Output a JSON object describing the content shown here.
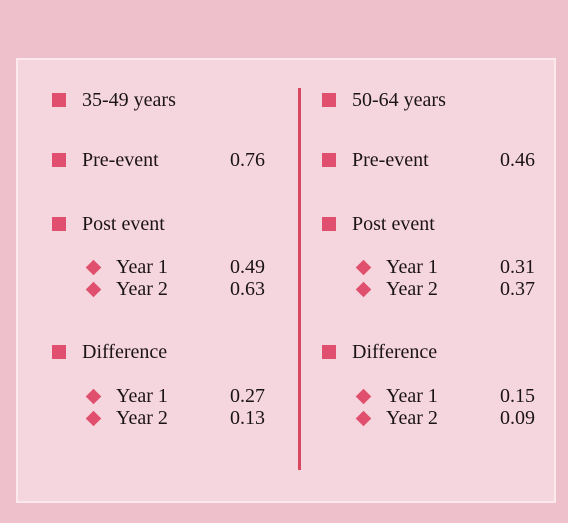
{
  "columns": [
    {
      "group": "35-49 years",
      "pre_event": {
        "label": "Pre-event",
        "value": 0.76
      },
      "post_event": {
        "label": "Post event",
        "rows": [
          {
            "label": "Year 1",
            "value": 0.49
          },
          {
            "label": "Year 2",
            "value": 0.63
          }
        ]
      },
      "difference": {
        "label": "Difference",
        "rows": [
          {
            "label": "Year 1",
            "value": 0.27
          },
          {
            "label": "Year 2",
            "value": 0.13
          }
        ]
      }
    },
    {
      "group": "50-64 years",
      "pre_event": {
        "label": "Pre-event",
        "value": 0.46
      },
      "post_event": {
        "label": "Post event",
        "rows": [
          {
            "label": "Year 1",
            "value": 0.31
          },
          {
            "label": "Year 2",
            "value": 0.37
          }
        ]
      },
      "difference": {
        "label": "Difference",
        "rows": [
          {
            "label": "Year 1",
            "value": 0.15
          },
          {
            "label": "Year 2",
            "value": 0.09
          }
        ]
      }
    }
  ]
}
